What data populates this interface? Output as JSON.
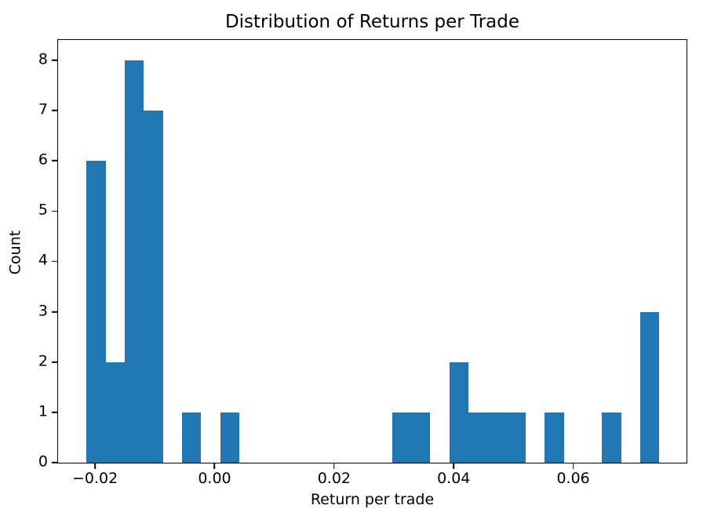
{
  "figure": {
    "background": "#ffffff",
    "text_color": "#000000",
    "spine_color": "#000000"
  },
  "chart_data": {
    "type": "bar",
    "subtype": "histogram",
    "title": "Distribution of Returns per Trade",
    "xlabel": "Return per trade",
    "ylabel": "Count",
    "bar_color": "#1f77b4",
    "grid": false,
    "legend": "none",
    "bin_start": -0.02139,
    "bin_width": 0.003193,
    "counts": [
      6,
      2,
      8,
      7,
      0,
      1,
      0,
      1,
      0,
      0,
      0,
      0,
      0,
      0,
      0,
      0,
      1,
      1,
      0,
      2,
      1,
      1,
      1,
      0,
      1,
      0,
      0,
      1,
      0,
      3
    ],
    "xlim": [
      -0.02618,
      0.07895
    ],
    "ylim": [
      0,
      8.4
    ],
    "x_ticks": [
      {
        "value": -0.02,
        "label": "−0.02"
      },
      {
        "value": 0.0,
        "label": "0.00"
      },
      {
        "value": 0.02,
        "label": "0.02"
      },
      {
        "value": 0.04,
        "label": "0.04"
      },
      {
        "value": 0.06,
        "label": "0.06"
      }
    ],
    "y_ticks": [
      {
        "value": 0,
        "label": "0"
      },
      {
        "value": 1,
        "label": "1"
      },
      {
        "value": 2,
        "label": "2"
      },
      {
        "value": 3,
        "label": "3"
      },
      {
        "value": 4,
        "label": "4"
      },
      {
        "value": 5,
        "label": "5"
      },
      {
        "value": 6,
        "label": "6"
      },
      {
        "value": 7,
        "label": "7"
      },
      {
        "value": 8,
        "label": "8"
      }
    ]
  }
}
